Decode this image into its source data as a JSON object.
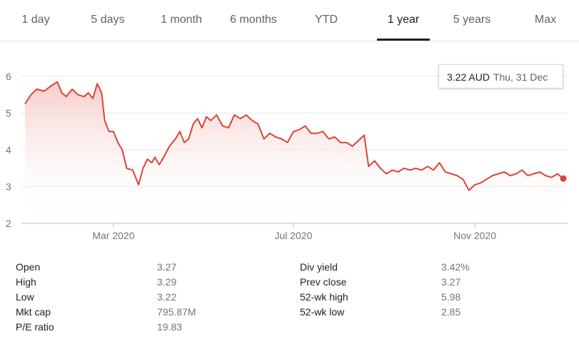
{
  "tabs": [
    {
      "label": "1 day",
      "active": false
    },
    {
      "label": "5 days",
      "active": false
    },
    {
      "label": "1 month",
      "active": false
    },
    {
      "label": "6 months",
      "active": false
    },
    {
      "label": "YTD",
      "active": false
    },
    {
      "label": "1 year",
      "active": true
    },
    {
      "label": "5 years",
      "active": false
    },
    {
      "label": "Max",
      "active": false
    }
  ],
  "tooltip": {
    "price": "3.22 AUD",
    "date": "Thu, 31 Dec"
  },
  "colors": {
    "line": "#db4437",
    "fill_top": "#f6c7c3",
    "grid": "#e6e6e6",
    "axis_text": "#70757a"
  },
  "chart_data": {
    "type": "area",
    "ylim": [
      2,
      6
    ],
    "y_ticks": [
      "2",
      "3",
      "4",
      "5",
      "6"
    ],
    "x_ticks": [
      "Mar 2020",
      "Jul 2020",
      "Nov 2020"
    ],
    "x_tick_days": [
      60,
      182,
      305
    ],
    "x_range_days": [
      0,
      365
    ],
    "series": [
      {
        "points": [
          [
            0,
            5.25
          ],
          [
            4,
            5.5
          ],
          [
            8,
            5.65
          ],
          [
            13,
            5.6
          ],
          [
            18,
            5.75
          ],
          [
            22,
            5.85
          ],
          [
            25,
            5.55
          ],
          [
            28,
            5.45
          ],
          [
            32,
            5.65
          ],
          [
            36,
            5.5
          ],
          [
            40,
            5.45
          ],
          [
            43,
            5.55
          ],
          [
            46,
            5.4
          ],
          [
            49,
            5.8
          ],
          [
            52,
            5.55
          ],
          [
            54,
            4.8
          ],
          [
            57,
            4.5
          ],
          [
            60,
            4.5
          ],
          [
            63,
            4.2
          ],
          [
            66,
            4.0
          ],
          [
            69,
            3.5
          ],
          [
            73,
            3.45
          ],
          [
            77,
            3.05
          ],
          [
            80,
            3.5
          ],
          [
            83,
            3.75
          ],
          [
            86,
            3.65
          ],
          [
            88,
            3.8
          ],
          [
            91,
            3.6
          ],
          [
            94,
            3.8
          ],
          [
            98,
            4.1
          ],
          [
            102,
            4.3
          ],
          [
            105,
            4.5
          ],
          [
            108,
            4.2
          ],
          [
            111,
            4.3
          ],
          [
            114,
            4.7
          ],
          [
            117,
            4.85
          ],
          [
            120,
            4.6
          ],
          [
            123,
            4.9
          ],
          [
            126,
            4.8
          ],
          [
            130,
            4.95
          ],
          [
            134,
            4.65
          ],
          [
            138,
            4.6
          ],
          [
            142,
            4.95
          ],
          [
            146,
            4.85
          ],
          [
            150,
            4.95
          ],
          [
            154,
            4.8
          ],
          [
            158,
            4.7
          ],
          [
            162,
            4.3
          ],
          [
            166,
            4.45
          ],
          [
            170,
            4.35
          ],
          [
            174,
            4.3
          ],
          [
            178,
            4.2
          ],
          [
            182,
            4.5
          ],
          [
            186,
            4.55
          ],
          [
            190,
            4.65
          ],
          [
            194,
            4.45
          ],
          [
            198,
            4.45
          ],
          [
            202,
            4.5
          ],
          [
            206,
            4.3
          ],
          [
            210,
            4.35
          ],
          [
            214,
            4.2
          ],
          [
            218,
            4.2
          ],
          [
            222,
            4.1
          ],
          [
            226,
            4.25
          ],
          [
            230,
            4.4
          ],
          [
            233,
            3.55
          ],
          [
            237,
            3.7
          ],
          [
            241,
            3.5
          ],
          [
            245,
            3.35
          ],
          [
            249,
            3.45
          ],
          [
            253,
            3.4
          ],
          [
            257,
            3.5
          ],
          [
            261,
            3.45
          ],
          [
            265,
            3.5
          ],
          [
            269,
            3.45
          ],
          [
            273,
            3.55
          ],
          [
            277,
            3.45
          ],
          [
            281,
            3.65
          ],
          [
            285,
            3.4
          ],
          [
            289,
            3.35
          ],
          [
            293,
            3.3
          ],
          [
            297,
            3.2
          ],
          [
            301,
            2.9
          ],
          [
            305,
            3.05
          ],
          [
            309,
            3.1
          ],
          [
            313,
            3.2
          ],
          [
            317,
            3.3
          ],
          [
            321,
            3.35
          ],
          [
            325,
            3.4
          ],
          [
            329,
            3.3
          ],
          [
            333,
            3.35
          ],
          [
            337,
            3.45
          ],
          [
            341,
            3.3
          ],
          [
            345,
            3.35
          ],
          [
            349,
            3.4
          ],
          [
            353,
            3.3
          ],
          [
            357,
            3.25
          ],
          [
            361,
            3.35
          ],
          [
            365,
            3.22
          ]
        ]
      }
    ]
  },
  "stats_left": [
    {
      "label": "Open",
      "value": "3.27"
    },
    {
      "label": "High",
      "value": "3.29"
    },
    {
      "label": "Low",
      "value": "3.22"
    },
    {
      "label": "Mkt cap",
      "value": "795.87M"
    },
    {
      "label": "P/E ratio",
      "value": "19.83"
    }
  ],
  "stats_right": [
    {
      "label": "Div yield",
      "value": "3.42%"
    },
    {
      "label": "Prev close",
      "value": "3.27"
    },
    {
      "label": "52-wk high",
      "value": "5.98"
    },
    {
      "label": "52-wk low",
      "value": "2.85"
    }
  ]
}
